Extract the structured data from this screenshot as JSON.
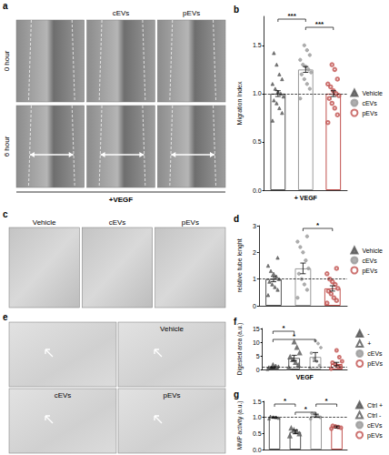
{
  "figure_panels": [
    {
      "label": "a",
      "column_titles": [
        "cEVs",
        "pEVs"
      ],
      "row_titles": [
        "0 hour",
        "6 hour"
      ],
      "footer": "+VEGF"
    },
    {
      "label": "c",
      "column_titles": [
        "Vehicle",
        "cEVs",
        "pEVs"
      ]
    },
    {
      "label": "e",
      "image_titles": [
        "Vehicle",
        "cEVs",
        "pEVs"
      ]
    }
  ],
  "chart_data": [
    {
      "type": "bar",
      "title": "b",
      "y_label": "Migration Index",
      "x_label": "+ VEGF",
      "categories": [
        "Vehicle",
        "cEVs",
        "pEVs"
      ],
      "values": [
        1.0,
        1.25,
        1.0
      ],
      "errors": [
        0.03,
        0.03,
        0.03
      ],
      "points": [
        [
          0.72,
          0.8,
          0.85,
          0.9,
          0.93,
          0.97,
          1.0,
          1.02,
          1.05,
          1.1,
          1.15,
          1.2,
          1.3,
          1.42
        ],
        [
          0.95,
          1.05,
          1.1,
          1.15,
          1.2,
          1.22,
          1.25,
          1.28,
          1.3,
          1.35,
          1.4,
          1.45,
          1.5
        ],
        [
          0.7,
          0.78,
          0.85,
          0.9,
          0.95,
          0.98,
          1.0,
          1.03,
          1.07,
          1.1,
          1.15,
          1.25,
          1.3
        ]
      ],
      "colors": [
        "#555555",
        "#9a9a9a",
        "#c0504d"
      ],
      "ylim": [
        0,
        1.8
      ],
      "yticks": [
        {
          "value": 0,
          "label": "0.0"
        },
        {
          "value": 0.5,
          "label": "0.5"
        },
        {
          "value": 1,
          "label": "1.0"
        },
        {
          "value": 1.5,
          "label": "1.5"
        }
      ],
      "reference_line": 1,
      "annotations": [
        {
          "from": "Vehicle",
          "to": "cEVs",
          "text": "***"
        },
        {
          "from": "cEVs",
          "to": "pEVs",
          "text": "***"
        }
      ],
      "tick_labels": "y",
      "legend": "right",
      "grid": false
    },
    {
      "type": "bar",
      "title": "d",
      "y_label": "relative tube lenght",
      "categories": [
        "Vehicle",
        "cEVs",
        "pEVs"
      ],
      "values": [
        1.0,
        1.4,
        0.65
      ],
      "errors": [
        0.1,
        0.2,
        0.1
      ],
      "points": [
        [
          0.4,
          0.6,
          0.7,
          0.8,
          0.9,
          1.0,
          1.1,
          1.2,
          1.3,
          1.5,
          1.8
        ],
        [
          0.3,
          0.6,
          0.8,
          1.0,
          1.2,
          1.4,
          1.7,
          2.0,
          2.2,
          2.4,
          2.6
        ],
        [
          0.1,
          0.2,
          0.3,
          0.45,
          0.55,
          0.65,
          0.8,
          0.9,
          1.0,
          1.2,
          1.4
        ]
      ],
      "colors": [
        "#555555",
        "#9a9a9a",
        "#c0504d"
      ],
      "ylim": [
        0,
        3
      ],
      "yticks": [
        0,
        1,
        2,
        3
      ],
      "reference_line": 1,
      "annotations": [
        {
          "from": "cEVs",
          "to": "pEVs",
          "text": "*"
        }
      ],
      "tick_labels": "y",
      "legend": "right",
      "grid": false
    },
    {
      "type": "bar",
      "title": "f",
      "y_label": "Digested area (a.u.)",
      "x_label": "VEGF",
      "categories": [
        "-",
        "+",
        "cEVs",
        "pEVs"
      ],
      "values": [
        0.8,
        4.2,
        4.6,
        2.0
      ],
      "errors": [
        0.3,
        1.0,
        1.6,
        0.6
      ],
      "points": [
        [
          0.1,
          0.3,
          0.5,
          0.7,
          0.9,
          1.2,
          1.5,
          2.0
        ],
        [
          0.5,
          1.5,
          2.5,
          3.5,
          4.5,
          6,
          8,
          10
        ],
        [
          0.5,
          1.5,
          3,
          4,
          6,
          8,
          9.5,
          10.5
        ],
        [
          0.3,
          0.8,
          1.2,
          1.8,
          2.5,
          3,
          4.5,
          7
        ]
      ],
      "colors": [
        "#555555",
        "#555555",
        "#9a9a9a",
        "#c0504d"
      ],
      "ylim": [
        0,
        15
      ],
      "yticks": [
        0,
        5,
        10,
        15
      ],
      "reference_line": 1,
      "annotations": [
        {
          "from": "-",
          "to": "+",
          "text": "*"
        },
        {
          "from": "-",
          "to": "cEVs",
          "text": "*"
        }
      ],
      "tick_labels": "y",
      "legend": "right",
      "grid": false
    },
    {
      "type": "bar",
      "title": "g",
      "y_label": "MMP activity (a.u.)",
      "categories": [
        "Ctrl +",
        "Ctrl -",
        "cEVs",
        "pEVs"
      ],
      "values": [
        1.0,
        0.55,
        1.05,
        0.7
      ],
      "errors": [
        0.02,
        0.06,
        0.05,
        0.03
      ],
      "points": [
        [
          0.96,
          0.98,
          1.0,
          1.01,
          1.03
        ],
        [
          0.42,
          0.48,
          0.55,
          0.6,
          0.66
        ],
        [
          0.95,
          1.0,
          1.05,
          1.1,
          1.12
        ],
        [
          0.65,
          0.68,
          0.7,
          0.72,
          0.74
        ]
      ],
      "colors": [
        "#555555",
        "#555555",
        "#9a9a9a",
        "#c0504d"
      ],
      "ylim": [
        0,
        1.5
      ],
      "yticks": [
        {
          "value": 0,
          "label": "0.0"
        },
        {
          "value": 0.5,
          "label": "0.5"
        },
        {
          "value": 1,
          "label": "1.0"
        },
        {
          "value": 1.5,
          "label": "1.5"
        }
      ],
      "reference_line": 1,
      "annotations": [
        {
          "from": "Ctrl +",
          "to": "Ctrl -",
          "text": "*"
        },
        {
          "from": "Ctrl -",
          "to": "cEVs",
          "text": "*"
        },
        {
          "from": "cEVs",
          "to": "pEVs",
          "text": "*"
        }
      ],
      "tick_labels": "y",
      "legend": "right",
      "grid": false
    }
  ]
}
